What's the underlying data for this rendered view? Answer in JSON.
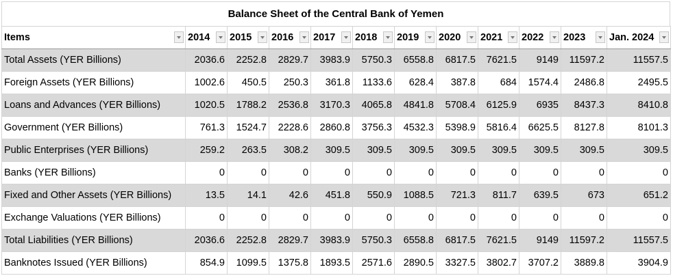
{
  "title": "Balance Sheet of the Central Bank of Yemen",
  "table": {
    "header": [
      "Items",
      "2014",
      "2015",
      "2016",
      "2017",
      "2018",
      "2019",
      "2020",
      "2021",
      "2022",
      "2023",
      "Jan. 2024"
    ],
    "rows": [
      [
        "Total Assets (YER Billions)",
        2036.6,
        2252.8,
        2829.7,
        3983.9,
        5750.3,
        6558.8,
        6817.5,
        7621.5,
        9149,
        11597.2,
        11557.5
      ],
      [
        "Foreign Assets (YER Billions)",
        1002.6,
        450.5,
        250.3,
        361.8,
        1133.6,
        628.4,
        387.8,
        684,
        1574.4,
        2486.8,
        2495.5
      ],
      [
        "Loans and Advances (YER Billions)",
        1020.5,
        1788.2,
        2536.8,
        3170.3,
        4065.8,
        4841.8,
        5708.4,
        6125.9,
        6935,
        8437.3,
        8410.8
      ],
      [
        "Government (YER Billions)",
        761.3,
        1524.7,
        2228.6,
        2860.8,
        3756.3,
        4532.3,
        5398.9,
        5816.4,
        6625.5,
        8127.8,
        8101.3
      ],
      [
        "Public Enterprises (YER Billions)",
        259.2,
        263.5,
        308.2,
        309.5,
        309.5,
        309.5,
        309.5,
        309.5,
        309.5,
        309.5,
        309.5
      ],
      [
        "Banks (YER Billions)",
        0,
        0,
        0,
        0,
        0,
        0,
        0,
        0,
        0,
        0,
        0
      ],
      [
        "Fixed and Other Assets (YER Billions)",
        13.5,
        14.1,
        42.6,
        451.8,
        550.9,
        1088.5,
        721.3,
        811.7,
        639.5,
        673,
        651.2
      ],
      [
        "Exchange Valuations (YER Billions)",
        0,
        0,
        0,
        0,
        0,
        0,
        0,
        0,
        0,
        0,
        0
      ],
      [
        "Total Liabilities (YER Billions)",
        2036.6,
        2252.8,
        2829.7,
        3983.9,
        5750.3,
        6558.8,
        6817.5,
        7621.5,
        9149,
        11597.2,
        11557.5
      ],
      [
        "Banknotes Issued (YER Billions)",
        854.9,
        1099.5,
        1375.8,
        1893.5,
        2571.6,
        2890.5,
        3327.5,
        3802.7,
        3707.2,
        3889.8,
        3904.9
      ]
    ]
  }
}
